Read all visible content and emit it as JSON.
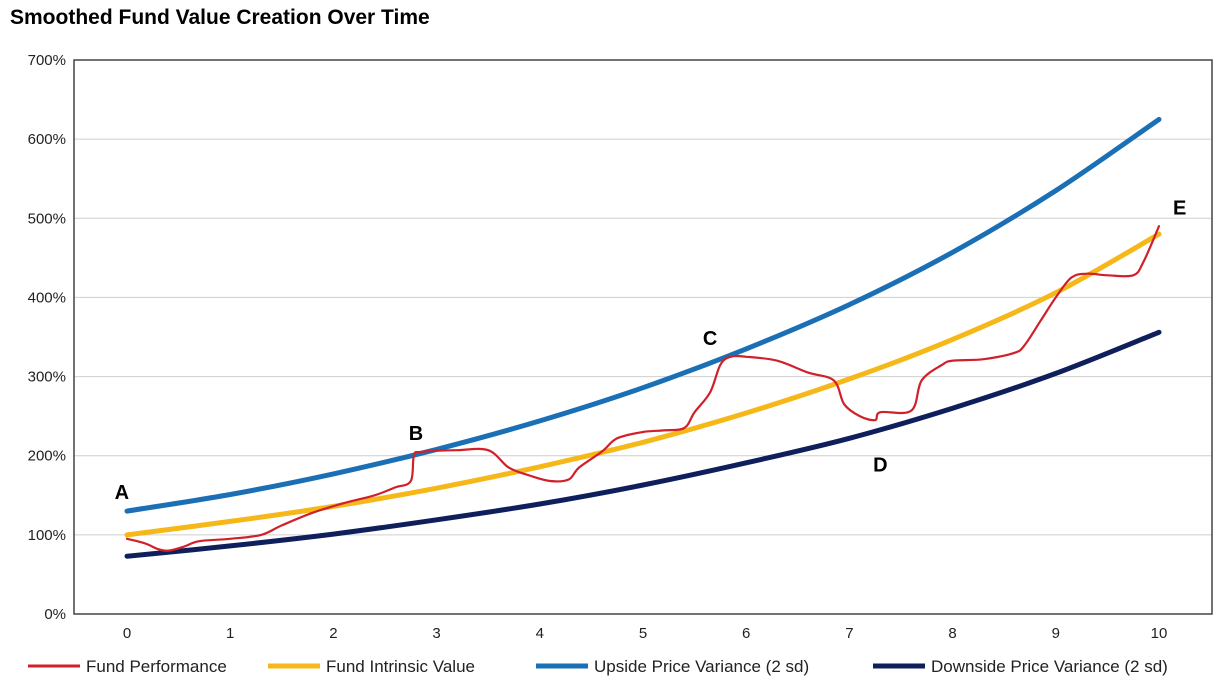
{
  "chart_data": {
    "type": "line",
    "title": "Smoothed Fund Value Creation Over Time",
    "xlabel": "",
    "ylabel": "",
    "x_ticks": [
      0,
      1,
      2,
      3,
      4,
      5,
      6,
      7,
      8,
      9,
      10
    ],
    "y_ticks": [
      "0%",
      "100%",
      "200%",
      "300%",
      "400%",
      "500%",
      "600%",
      "700%"
    ],
    "ylim": [
      0,
      7
    ],
    "xlim": [
      0,
      10
    ],
    "grid": "horizontal",
    "legend_position": "bottom",
    "series": [
      {
        "name": "Fund Performance",
        "color": "#d0202c",
        "points": [
          [
            0,
            0.95
          ],
          [
            0.1,
            0.92
          ],
          [
            0.2,
            0.88
          ],
          [
            0.3,
            0.82
          ],
          [
            0.4,
            0.8
          ],
          [
            0.55,
            0.85
          ],
          [
            0.7,
            0.92
          ],
          [
            1.0,
            0.95
          ],
          [
            1.3,
            1.0
          ],
          [
            1.5,
            1.12
          ],
          [
            1.8,
            1.28
          ],
          [
            2.1,
            1.4
          ],
          [
            2.4,
            1.5
          ],
          [
            2.6,
            1.6
          ],
          [
            2.75,
            1.68
          ],
          [
            2.78,
            2.0
          ],
          [
            2.85,
            2.05
          ],
          [
            3.2,
            2.07
          ],
          [
            3.5,
            2.07
          ],
          [
            3.7,
            1.85
          ],
          [
            3.9,
            1.75
          ],
          [
            4.1,
            1.68
          ],
          [
            4.28,
            1.7
          ],
          [
            4.38,
            1.85
          ],
          [
            4.6,
            2.05
          ],
          [
            4.75,
            2.22
          ],
          [
            5.0,
            2.3
          ],
          [
            5.2,
            2.32
          ],
          [
            5.4,
            2.35
          ],
          [
            5.5,
            2.55
          ],
          [
            5.65,
            2.8
          ],
          [
            5.75,
            3.15
          ],
          [
            5.85,
            3.25
          ],
          [
            6.0,
            3.25
          ],
          [
            6.3,
            3.2
          ],
          [
            6.6,
            3.05
          ],
          [
            6.85,
            2.95
          ],
          [
            6.95,
            2.65
          ],
          [
            7.1,
            2.5
          ],
          [
            7.25,
            2.45
          ],
          [
            7.3,
            2.55
          ],
          [
            7.6,
            2.57
          ],
          [
            7.7,
            2.95
          ],
          [
            7.9,
            3.15
          ],
          [
            8.0,
            3.2
          ],
          [
            8.3,
            3.22
          ],
          [
            8.6,
            3.3
          ],
          [
            8.7,
            3.4
          ],
          [
            8.85,
            3.7
          ],
          [
            9.0,
            4.0
          ],
          [
            9.15,
            4.25
          ],
          [
            9.3,
            4.3
          ],
          [
            9.5,
            4.28
          ],
          [
            9.75,
            4.28
          ],
          [
            9.85,
            4.45
          ],
          [
            10.0,
            4.9
          ]
        ]
      },
      {
        "name": "Fund Intrinsic Value",
        "color": "#f5b818",
        "points": [
          [
            0,
            1.0
          ],
          [
            1,
            1.17
          ],
          [
            2,
            1.36
          ],
          [
            3,
            1.59
          ],
          [
            4,
            1.86
          ],
          [
            5,
            2.17
          ],
          [
            6,
            2.54
          ],
          [
            7,
            2.97
          ],
          [
            8,
            3.47
          ],
          [
            9,
            4.06
          ],
          [
            10,
            4.8
          ]
        ]
      },
      {
        "name": "Upside Price Variance (2 sd)",
        "color": "#1b6fb5",
        "points": [
          [
            0,
            1.3
          ],
          [
            1,
            1.51
          ],
          [
            2,
            1.77
          ],
          [
            3,
            2.08
          ],
          [
            4,
            2.44
          ],
          [
            5,
            2.86
          ],
          [
            6,
            3.35
          ],
          [
            7,
            3.91
          ],
          [
            8,
            4.57
          ],
          [
            9,
            5.35
          ],
          [
            10,
            6.25
          ]
        ]
      },
      {
        "name": "Downside Price Variance (2 sd)",
        "color": "#0e1f5c",
        "points": [
          [
            0,
            0.73
          ],
          [
            1,
            0.86
          ],
          [
            2,
            1.01
          ],
          [
            3,
            1.19
          ],
          [
            4,
            1.39
          ],
          [
            5,
            1.63
          ],
          [
            6,
            1.91
          ],
          [
            7,
            2.22
          ],
          [
            8,
            2.6
          ],
          [
            9,
            3.04
          ],
          [
            10,
            3.56
          ]
        ]
      }
    ],
    "annotations": [
      {
        "text": "A",
        "x": -0.05,
        "y": 1.45
      },
      {
        "text": "B",
        "x": 2.8,
        "y": 2.2
      },
      {
        "text": "C",
        "x": 5.65,
        "y": 3.4
      },
      {
        "text": "D",
        "x": 7.3,
        "y": 1.8
      },
      {
        "text": "E",
        "x": 10.2,
        "y": 5.05
      }
    ]
  }
}
